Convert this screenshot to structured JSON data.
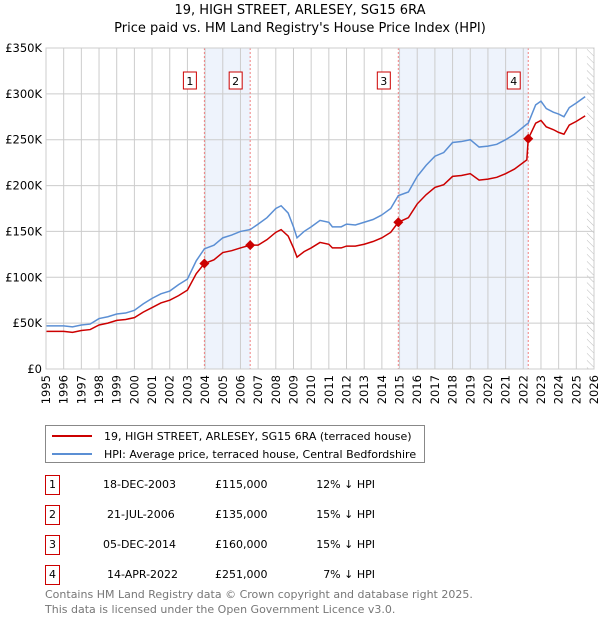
{
  "chart_data": {
    "type": "line",
    "title": "19, HIGH STREET, ARLESEY, SG15 6RA",
    "subtitle": "Price paid vs. HM Land Registry's House Price Index (HPI)",
    "xlim": [
      1995,
      2026
    ],
    "ylim": [
      0,
      350000
    ],
    "x_ticks": [
      "1995",
      "1996",
      "1997",
      "1998",
      "1999",
      "2000",
      "2001",
      "2002",
      "2003",
      "2004",
      "2005",
      "2006",
      "2007",
      "2008",
      "2009",
      "2010",
      "2011",
      "2012",
      "2013",
      "2014",
      "2015",
      "2016",
      "2017",
      "2018",
      "2019",
      "2020",
      "2021",
      "2022",
      "2023",
      "2024",
      "2025",
      "2026"
    ],
    "y_ticks": [
      {
        "v": 0,
        "label": "£0"
      },
      {
        "v": 50000,
        "label": "£50K"
      },
      {
        "v": 100000,
        "label": "£100K"
      },
      {
        "v": 150000,
        "label": "£150K"
      },
      {
        "v": 200000,
        "label": "£200K"
      },
      {
        "v": 250000,
        "label": "£250K"
      },
      {
        "v": 300000,
        "label": "£300K"
      },
      {
        "v": 350000,
        "label": "£350K"
      }
    ],
    "grid": true,
    "x": [
      1995,
      1996,
      1996.5,
      1997,
      1997.5,
      1998,
      1998.5,
      1999,
      1999.5,
      2000,
      2000.5,
      2001,
      2001.5,
      2002,
      2002.5,
      2003,
      2003.5,
      2003.96,
      2004.5,
      2005,
      2005.5,
      2006,
      2006.55,
      2007,
      2007.5,
      2008,
      2008.3,
      2008.7,
      2009,
      2009.2,
      2009.6,
      2010,
      2010.5,
      2011,
      2011.2,
      2011.7,
      2012,
      2012.5,
      2013,
      2013.5,
      2014,
      2014.5,
      2014.93,
      2015.5,
      2016,
      2016.5,
      2017,
      2017.5,
      2018,
      2018.5,
      2019,
      2019.5,
      2020,
      2020.5,
      2021,
      2021.5,
      2022.2,
      2022.28,
      2022.7,
      2023,
      2023.3,
      2023.7,
      2024,
      2024.3,
      2024.6,
      2025,
      2025.5
    ],
    "series": [
      {
        "name": "19, HIGH STREET, ARLESEY, SG15 6RA (terraced house)",
        "color": "#cc0000",
        "values": [
          41,
          41,
          40,
          42,
          43,
          48,
          50,
          53,
          54,
          56,
          62,
          67,
          72,
          75,
          80,
          86,
          104,
          115,
          119,
          127,
          129,
          132,
          135,
          135,
          141,
          149,
          152,
          145,
          132,
          122,
          128,
          132,
          138,
          136,
          132,
          132,
          134,
          134,
          136,
          139,
          143,
          149,
          160,
          165,
          180,
          190,
          198,
          201,
          210,
          211,
          213,
          206,
          207,
          209,
          213,
          218,
          228,
          251,
          268,
          271,
          264,
          261,
          258,
          256,
          266,
          270,
          276
        ]
      },
      {
        "name": "HPI: Average price, terraced house, Central Bedfordshire",
        "color": "#5b8fd4",
        "values": [
          47,
          47,
          46,
          48,
          49,
          55,
          57,
          60,
          61,
          64,
          71,
          77,
          82,
          85,
          92,
          98,
          118,
          131,
          135,
          143,
          146,
          150,
          152,
          158,
          165,
          175,
          178,
          170,
          155,
          143,
          150,
          155,
          162,
          160,
          155,
          155,
          158,
          157,
          160,
          163,
          168,
          175,
          189,
          193,
          210,
          222,
          232,
          236,
          247,
          248,
          250,
          242,
          243,
          245,
          250,
          256,
          267,
          268,
          288,
          292,
          284,
          280,
          278,
          275,
          285,
          290,
          297
        ]
      }
    ],
    "value_unit": "thousands GBP",
    "sales": [
      {
        "n": "1",
        "x": 2003.96,
        "price": 115,
        "date": "18-DEC-2003",
        "price_label": "£115,000",
        "hpi": "12% ↓ HPI"
      },
      {
        "n": "2",
        "x": 2006.55,
        "price": 135,
        "date": "21-JUL-2006",
        "price_label": "£135,000",
        "hpi": "15% ↓ HPI"
      },
      {
        "n": "3",
        "x": 2014.93,
        "price": 160,
        "date": "05-DEC-2014",
        "price_label": "£160,000",
        "hpi": "15% ↓ HPI"
      },
      {
        "n": "4",
        "x": 2022.28,
        "price": 251,
        "date": "14-APR-2022",
        "price_label": "£251,000",
        "hpi": "7% ↓ HPI"
      }
    ],
    "shaded": [
      [
        2003.96,
        2006.55
      ],
      [
        2014.93,
        2022.28
      ]
    ],
    "forecast_from": 2025.6,
    "legend_placement": "bottom"
  },
  "footer": [
    "Contains HM Land Registry data © Crown copyright and database right 2025.",
    "This data is licensed under the Open Government Licence v3.0."
  ]
}
